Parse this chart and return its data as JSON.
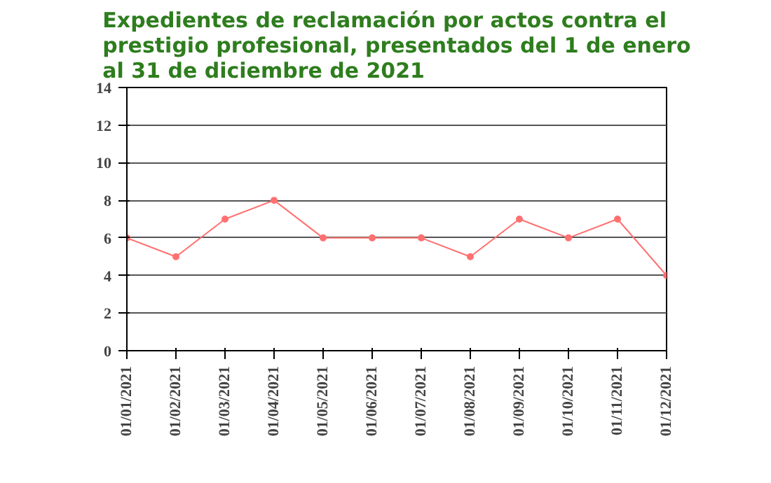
{
  "chart_data": {
    "type": "line",
    "title": "Expedientes de reclamación por actos contra el prestigio profesional, presentados del 1 de enero al 31 de diciembre de 2021",
    "categories": [
      "01/01/2021",
      "01/02/2021",
      "01/03/2021",
      "01/04/2021",
      "01/05/2021",
      "01/06/2021",
      "01/07/2021",
      "01/08/2021",
      "01/09/2021",
      "01/10/2021",
      "01/11/2021",
      "01/12/2021"
    ],
    "series": [
      {
        "color": "#ff7070",
        "values": [
          6,
          5,
          7,
          8,
          6,
          6,
          6,
          5,
          7,
          6,
          7,
          4
        ]
      }
    ],
    "ylim": [
      0,
      14
    ],
    "yticks": [
      0,
      2,
      4,
      6,
      8,
      10,
      12,
      14
    ],
    "grid": "y",
    "marker": "circle",
    "line_style": "solid"
  }
}
